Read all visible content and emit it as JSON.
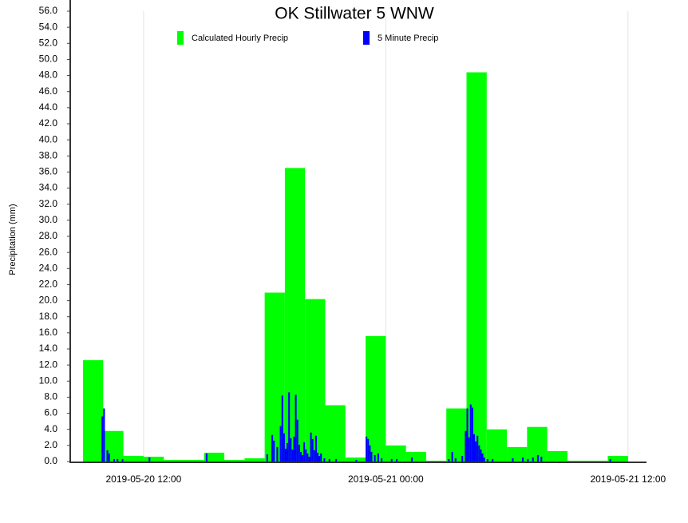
{
  "chart_data": {
    "type": "bar",
    "title": "OK Stillwater 5 WNW",
    "y_label": "Precipitation (mm)",
    "xlim": [
      "2019-05-20 08:22",
      "2019-05-21 12:55"
    ],
    "xticks": [
      "2019-05-20 12:00",
      "2019-05-21 00:00",
      "2019-05-21 12:00"
    ],
    "ylim": [
      0,
      56
    ],
    "yticks": [
      {
        "value": 0,
        "label": "0.0"
      },
      {
        "value": 2,
        "label": "2.0"
      },
      {
        "value": 4,
        "label": "4.0"
      },
      {
        "value": 6,
        "label": "6.0"
      },
      {
        "value": 8,
        "label": "8.0"
      },
      {
        "value": 10,
        "label": "10.0"
      },
      {
        "value": 12,
        "label": "12.0"
      },
      {
        "value": 14,
        "label": "14.0"
      },
      {
        "value": 16,
        "label": "16.0"
      },
      {
        "value": 18,
        "label": "18.0"
      },
      {
        "value": 20,
        "label": "20.0"
      },
      {
        "value": 22,
        "label": "22.0"
      },
      {
        "value": 24,
        "label": "24.0"
      },
      {
        "value": 26,
        "label": "26.0"
      },
      {
        "value": 28,
        "label": "28.0"
      },
      {
        "value": 30,
        "label": "30.0"
      },
      {
        "value": 32,
        "label": "32.0"
      },
      {
        "value": 34,
        "label": "34.0"
      },
      {
        "value": 36,
        "label": "36.0"
      },
      {
        "value": 38,
        "label": "38.0"
      },
      {
        "value": 40,
        "label": "40.0"
      },
      {
        "value": 42,
        "label": "42.0"
      },
      {
        "value": 44,
        "label": "44.0"
      },
      {
        "value": 46,
        "label": "46.0"
      },
      {
        "value": 48,
        "label": "48.0"
      },
      {
        "value": 50,
        "label": "50.0"
      },
      {
        "value": 52,
        "label": "52.0"
      },
      {
        "value": 54,
        "label": "54.0"
      },
      {
        "value": 56,
        "label": "56.0"
      }
    ],
    "x_grid": true,
    "series": [
      {
        "name": "Calculated Hourly Precip",
        "color": "#00ff00",
        "x": [
          "2019-05-20 09:00",
          "2019-05-20 10:00",
          "2019-05-20 11:00",
          "2019-05-20 12:00",
          "2019-05-20 13:00",
          "2019-05-20 14:00",
          "2019-05-20 15:00",
          "2019-05-20 16:00",
          "2019-05-20 17:00",
          "2019-05-20 18:00",
          "2019-05-20 19:00",
          "2019-05-20 20:00",
          "2019-05-20 21:00",
          "2019-05-20 22:00",
          "2019-05-20 23:00",
          "2019-05-21 00:00",
          "2019-05-21 01:00",
          "2019-05-21 02:00",
          "2019-05-21 03:00",
          "2019-05-21 04:00",
          "2019-05-21 05:00",
          "2019-05-21 06:00",
          "2019-05-21 07:00",
          "2019-05-21 08:00",
          "2019-05-21 09:00",
          "2019-05-21 10:00",
          "2019-05-21 11:00"
        ],
        "values": [
          12.6,
          3.8,
          0.7,
          0.6,
          0.2,
          0.2,
          1.1,
          0.2,
          0.4,
          21.0,
          36.5,
          20.2,
          7.0,
          0.5,
          15.6,
          2.0,
          1.2,
          0.1,
          6.6,
          48.4,
          4.0,
          1.8,
          4.3,
          1.3,
          0.1,
          0.1,
          0.7
        ]
      },
      {
        "name": "5 Minute Precip",
        "color": "#0000ff",
        "x": [
          "2019-05-20 09:55",
          "2019-05-20 10:00",
          "2019-05-20 10:10",
          "2019-05-20 10:15",
          "2019-05-20 10:30",
          "2019-05-20 10:40",
          "2019-05-20 10:55",
          "2019-05-20 12:15",
          "2019-05-20 15:05",
          "2019-05-20 18:05",
          "2019-05-20 18:20",
          "2019-05-20 18:25",
          "2019-05-20 18:35",
          "2019-05-20 18:45",
          "2019-05-20 18:50",
          "2019-05-20 18:55",
          "2019-05-20 19:00",
          "2019-05-20 19:05",
          "2019-05-20 19:10",
          "2019-05-20 19:15",
          "2019-05-20 19:20",
          "2019-05-20 19:25",
          "2019-05-20 19:30",
          "2019-05-20 19:35",
          "2019-05-20 19:40",
          "2019-05-20 19:45",
          "2019-05-20 19:50",
          "2019-05-20 19:55",
          "2019-05-20 20:00",
          "2019-05-20 20:05",
          "2019-05-20 20:10",
          "2019-05-20 20:15",
          "2019-05-20 20:20",
          "2019-05-20 20:25",
          "2019-05-20 20:30",
          "2019-05-20 20:35",
          "2019-05-20 20:40",
          "2019-05-20 20:45",
          "2019-05-20 20:55",
          "2019-05-20 21:10",
          "2019-05-20 21:30",
          "2019-05-20 22:30",
          "2019-05-20 23:00",
          "2019-05-20 23:05",
          "2019-05-20 23:10",
          "2019-05-20 23:15",
          "2019-05-20 23:25",
          "2019-05-20 23:35",
          "2019-05-20 23:45",
          "2019-05-21 00:15",
          "2019-05-21 00:30",
          "2019-05-21 01:15",
          "2019-05-21 03:05",
          "2019-05-21 03:15",
          "2019-05-21 03:25",
          "2019-05-21 03:45",
          "2019-05-21 03:55",
          "2019-05-21 04:00",
          "2019-05-21 04:05",
          "2019-05-21 04:10",
          "2019-05-21 04:15",
          "2019-05-21 04:20",
          "2019-05-21 04:25",
          "2019-05-21 04:30",
          "2019-05-21 04:35",
          "2019-05-21 04:40",
          "2019-05-21 04:45",
          "2019-05-21 04:50",
          "2019-05-21 05:00",
          "2019-05-21 05:15",
          "2019-05-21 06:15",
          "2019-05-21 06:45",
          "2019-05-21 07:00",
          "2019-05-21 07:15",
          "2019-05-21 07:30",
          "2019-05-21 07:40",
          "2019-05-21 11:05"
        ],
        "values": [
          5.6,
          6.6,
          1.4,
          1.0,
          0.3,
          0.3,
          0.3,
          0.5,
          1.0,
          0.9,
          3.3,
          2.6,
          1.8,
          4.4,
          8.2,
          3.5,
          1.6,
          2.3,
          8.6,
          2.9,
          1.5,
          3.1,
          8.3,
          5.2,
          2.1,
          1.2,
          0.8,
          2.4,
          1.5,
          1.0,
          0.6,
          3.6,
          2.8,
          1.4,
          3.2,
          1.1,
          0.7,
          1.0,
          0.4,
          0.3,
          0.3,
          0.2,
          3.1,
          2.8,
          2.0,
          1.2,
          0.8,
          1.0,
          0.4,
          0.3,
          0.3,
          0.5,
          0.3,
          1.2,
          0.4,
          0.7,
          3.8,
          6.6,
          3.0,
          7.1,
          6.7,
          3.4,
          2.5,
          3.2,
          2.0,
          1.5,
          1.0,
          0.5,
          0.3,
          0.3,
          0.4,
          0.5,
          0.3,
          0.5,
          0.8,
          0.6,
          0.3
        ]
      }
    ]
  }
}
